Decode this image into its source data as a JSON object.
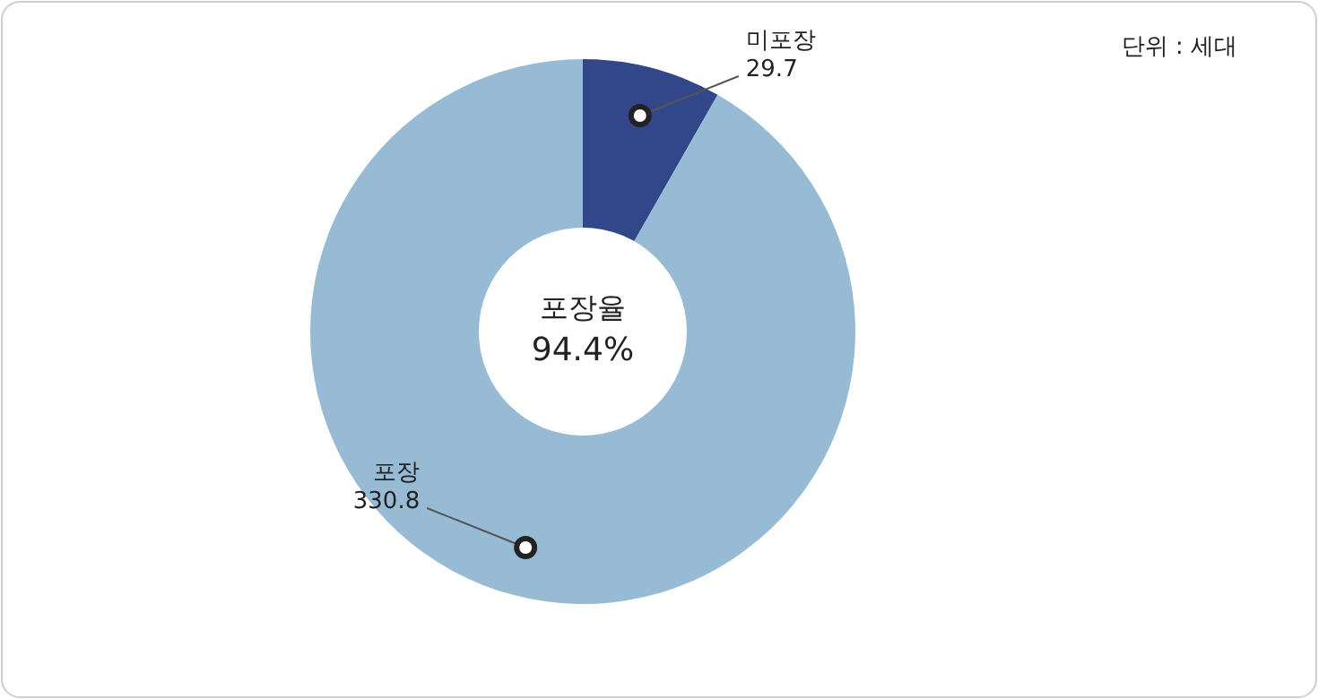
{
  "chart_data": {
    "type": "donut",
    "categories": [
      "미포장",
      "포장"
    ],
    "values": [
      29.7,
      330.8
    ],
    "colors": [
      "#32468a",
      "#97bbd4"
    ],
    "data_labels": true,
    "annotations": [
      "단위 : 세대",
      "포장율",
      "94.4%"
    ]
  }
}
